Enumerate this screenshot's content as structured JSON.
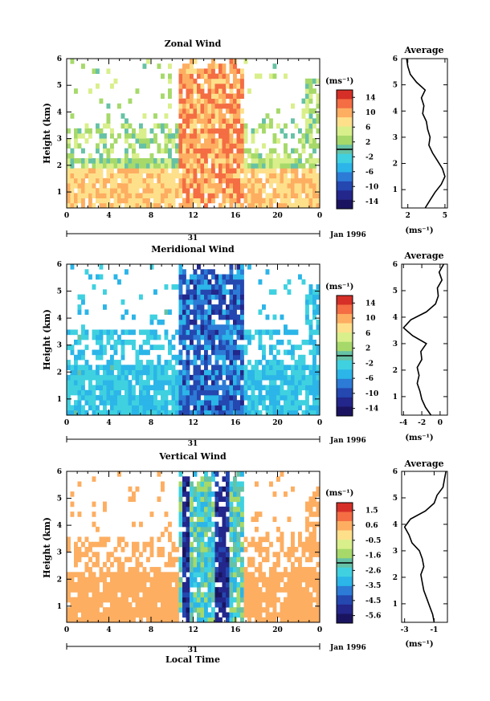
{
  "chart_data": [
    {
      "type": "heatmap",
      "title": "Zonal Wind",
      "ylabel": "Height (km)",
      "xlim": [
        0,
        24
      ],
      "ylim": [
        0.4,
        6
      ],
      "xticks": [
        "0",
        "4",
        "8",
        "12",
        "16",
        "20",
        "0"
      ],
      "yticks": [
        "1",
        "2",
        "3",
        "4",
        "5",
        "6"
      ],
      "day_label": "31",
      "date_label": "Jan 1996",
      "colorbar": {
        "unit": "(ms⁻¹)",
        "ticks": [
          "14",
          "10",
          "6",
          "2",
          "-2",
          "-6",
          "-10",
          "-14"
        ],
        "range": [
          -16,
          16
        ]
      },
      "profile": {
        "title": "Average",
        "xticks": [
          "2",
          "5"
        ],
        "xlim": [
          1.5,
          5.2
        ],
        "xunit": "(ms⁻¹)",
        "height": [
          0.3,
          0.6,
          0.9,
          1.2,
          1.5,
          1.8,
          2.1,
          2.4,
          2.7,
          3.0,
          3.3,
          3.6,
          3.9,
          4.2,
          4.5,
          4.8,
          5.1,
          5.4,
          5.7,
          6.0
        ],
        "value": [
          3.4,
          3.8,
          4.2,
          4.7,
          5.0,
          4.8,
          4.4,
          4.0,
          3.7,
          3.8,
          3.6,
          3.5,
          3.2,
          3.3,
          3.1,
          3.4,
          2.7,
          2.2,
          2.0,
          1.9
        ]
      }
    },
    {
      "type": "heatmap",
      "title": "Meridional Wind",
      "ylabel": "Height (km)",
      "xlim": [
        0,
        24
      ],
      "ylim": [
        0.4,
        6
      ],
      "xticks": [
        "0",
        "4",
        "8",
        "12",
        "16",
        "20",
        "0"
      ],
      "yticks": [
        "1",
        "2",
        "3",
        "4",
        "5",
        "6"
      ],
      "day_label": "31",
      "date_label": "Jan 1996",
      "colorbar": {
        "unit": "(ms⁻¹)",
        "ticks": [
          "14",
          "10",
          "6",
          "2",
          "-2",
          "-6",
          "-10",
          "-14"
        ],
        "range": [
          -16,
          16
        ]
      },
      "profile": {
        "title": "Average",
        "xticks": [
          "-4",
          "-2",
          "0"
        ],
        "xlim": [
          -4.2,
          0.8
        ],
        "xunit": "(ms⁻¹)",
        "height": [
          0.3,
          0.6,
          0.9,
          1.2,
          1.5,
          1.8,
          2.1,
          2.4,
          2.7,
          3.0,
          3.3,
          3.6,
          3.9,
          4.2,
          4.5,
          4.8,
          5.1,
          5.4,
          5.7,
          6.0
        ],
        "value": [
          -1.0,
          -1.6,
          -2.0,
          -2.2,
          -2.5,
          -2.3,
          -2.5,
          -2.0,
          -2.1,
          -1.5,
          -3.0,
          -4.0,
          -3.2,
          -1.5,
          -0.5,
          -0.2,
          -0.3,
          0.2,
          -0.1,
          0.4
        ]
      }
    },
    {
      "type": "heatmap",
      "title": "Vertical Wind",
      "ylabel": "Height (km)",
      "xlabel": "Local Time",
      "xlim": [
        0,
        24
      ],
      "ylim": [
        0.4,
        6
      ],
      "xticks": [
        "0",
        "4",
        "8",
        "12",
        "16",
        "20",
        "0"
      ],
      "yticks": [
        "1",
        "2",
        "3",
        "4",
        "5",
        "6"
      ],
      "day_label": "31",
      "date_label": "Jan 1996",
      "colorbar": {
        "unit": "(ms⁻¹)",
        "ticks": [
          "1.5",
          "0.6",
          "-0.5",
          "-1.6",
          "-2.6",
          "-3.5",
          "-4.5",
          "-5.6"
        ],
        "range": [
          -6,
          2
        ]
      },
      "profile": {
        "title": "Average",
        "xticks": [
          "-3",
          "-1"
        ],
        "xlim": [
          -3.2,
          -0.1
        ],
        "xunit": "(ms⁻¹)",
        "height": [
          0.3,
          0.6,
          0.9,
          1.2,
          1.5,
          1.8,
          2.1,
          2.4,
          2.7,
          3.0,
          3.3,
          3.6,
          3.9,
          4.2,
          4.5,
          4.8,
          5.1,
          5.4,
          5.7,
          6.0
        ],
        "value": [
          -1.0,
          -1.1,
          -1.3,
          -1.5,
          -1.7,
          -1.8,
          -1.9,
          -1.7,
          -1.8,
          -2.0,
          -2.5,
          -2.7,
          -3.0,
          -2.6,
          -1.6,
          -1.0,
          -0.8,
          -0.4,
          -0.3,
          -0.2
        ]
      }
    }
  ]
}
